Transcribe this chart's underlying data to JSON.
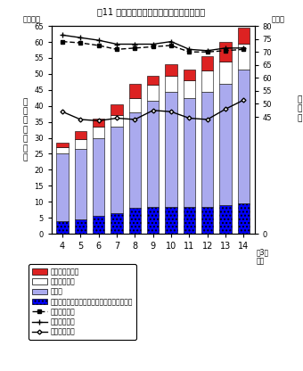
{
  "title": "図11 大学院（修士課程）修了者の進路状況",
  "years": [
    4,
    5,
    6,
    7,
    8,
    9,
    10,
    11,
    12,
    13,
    14
  ],
  "bar_shingaku": [
    4.0,
    4.5,
    5.5,
    6.5,
    8.0,
    8.5,
    8.5,
    8.5,
    8.5,
    9.0,
    9.5
  ],
  "bar_shushoku": [
    21.0,
    22.0,
    24.5,
    27.0,
    30.0,
    33.0,
    36.0,
    34.0,
    36.0,
    38.0,
    42.0
  ],
  "bar_sonota": [
    2.0,
    3.0,
    3.5,
    3.5,
    4.5,
    5.0,
    5.0,
    5.5,
    6.5,
    7.0,
    8.0
  ],
  "bar_shimei": [
    1.5,
    2.5,
    2.5,
    3.5,
    4.5,
    3.0,
    3.5,
    3.5,
    4.5,
    6.0,
    5.0
  ],
  "line_keisan": [
    74.0,
    73.5,
    72.5,
    71.0,
    71.5,
    72.0,
    72.5,
    70.0,
    70.0,
    70.5,
    71.0
  ],
  "line_otoko": [
    76.5,
    75.5,
    74.5,
    73.0,
    73.0,
    73.0,
    74.0,
    71.0,
    70.5,
    71.5,
    71.5
  ],
  "line_onna": [
    47.0,
    44.0,
    43.5,
    44.5,
    44.0,
    47.5,
    47.0,
    44.5,
    44.0,
    48.0,
    51.5
  ]
}
